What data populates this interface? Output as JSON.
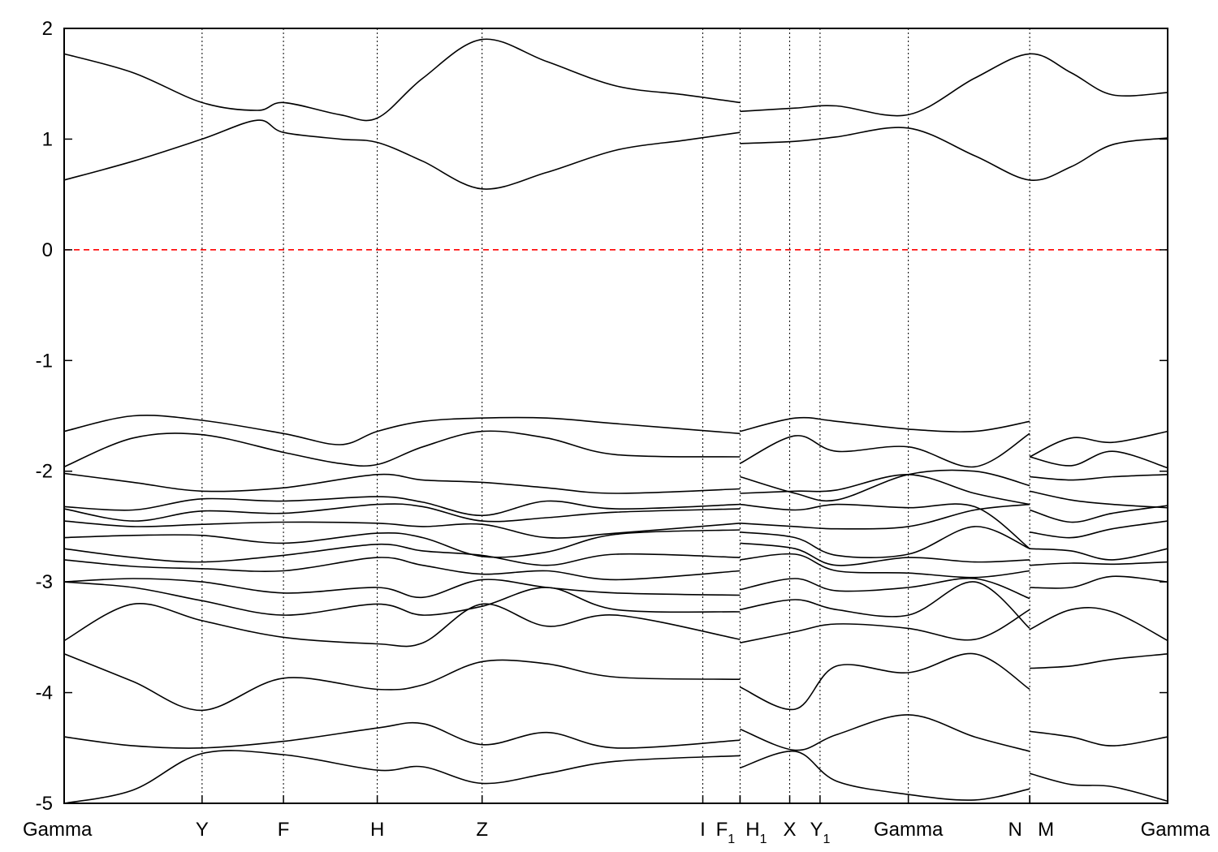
{
  "chart_data": {
    "type": "line",
    "title": "",
    "xlabel": "",
    "ylabel": "",
    "ylim": [
      -5,
      2
    ],
    "x_range": [
      0,
      8
    ],
    "y_ticks": [
      "2",
      "1",
      "0",
      "-1",
      "-2",
      "-3",
      "-4",
      "-5"
    ],
    "y_tick_values": [
      2,
      1,
      0,
      -1,
      -2,
      -3,
      -4,
      -5
    ],
    "k_points": [
      {
        "label": "Gamma",
        "sub": "",
        "x": 0.0
      },
      {
        "label": "Y",
        "sub": "",
        "x": 1.0
      },
      {
        "label": "F",
        "sub": "",
        "x": 1.59
      },
      {
        "label": "H",
        "sub": "",
        "x": 2.27
      },
      {
        "label": "Z",
        "sub": "",
        "x": 3.03
      },
      {
        "label": "I",
        "sub": "",
        "x": 4.63
      },
      {
        "label": "F",
        "sub": "1",
        "x": 4.9
      },
      {
        "label": "H",
        "sub": "1",
        "x": 4.9
      },
      {
        "label": "Y",
        "sub": "1",
        "x": 5.48
      },
      {
        "label": "X",
        "sub": "",
        "x": 5.26
      },
      {
        "label": "Gamma",
        "sub": "",
        "x": 6.12
      },
      {
        "label": "N",
        "sub": "",
        "x": 7.0
      },
      {
        "label": "M",
        "sub": "",
        "x": 7.0
      },
      {
        "label": "Gamma",
        "sub": "",
        "x": 8.0
      }
    ],
    "fermi_level": 0,
    "line_color": "#000000",
    "fermi_color": "#ff0000",
    "grid": "vertical dotted lines at k-points",
    "series": [
      {
        "x": [
          0,
          0.5,
          1.0,
          1.4,
          1.59,
          2.0,
          2.27,
          2.6,
          3.03,
          3.5,
          4.0,
          4.5,
          4.9
        ],
        "values": [
          1.77,
          1.6,
          1.33,
          1.26,
          1.33,
          1.22,
          1.19,
          1.55,
          1.9,
          1.7,
          1.48,
          1.4,
          1.33
        ]
      },
      {
        "x": [
          0,
          0.5,
          1.0,
          1.4,
          1.59,
          2.0,
          2.27,
          2.6,
          3.03,
          3.5,
          4.0,
          4.5,
          4.9
        ],
        "values": [
          0.63,
          0.8,
          1.0,
          1.17,
          1.06,
          1.0,
          0.97,
          0.8,
          0.55,
          0.7,
          0.9,
          0.99,
          1.06
        ]
      },
      {
        "x": [
          4.9,
          5.3,
          5.6,
          6.12,
          6.6,
          7.0,
          7.3,
          7.6,
          8.0
        ],
        "values": [
          1.25,
          1.28,
          1.3,
          1.22,
          1.55,
          1.77,
          1.6,
          1.4,
          1.42
        ]
      },
      {
        "x": [
          4.9,
          5.3,
          5.6,
          6.12,
          6.6,
          7.0,
          7.3,
          7.6,
          8.0
        ],
        "values": [
          0.96,
          0.98,
          1.02,
          1.1,
          0.85,
          0.63,
          0.75,
          0.95,
          1.01
        ]
      },
      {
        "x": [
          0,
          0.5,
          1.0,
          1.59,
          2.0,
          2.27,
          2.6,
          3.03,
          3.5,
          4.0,
          4.9
        ],
        "values": [
          -1.64,
          -1.5,
          -1.54,
          -1.66,
          -1.76,
          -1.64,
          -1.55,
          -1.52,
          -1.52,
          -1.57,
          -1.66
        ]
      },
      {
        "x": [
          0,
          0.5,
          1.0,
          1.59,
          2.0,
          2.27,
          2.6,
          3.03,
          3.5,
          4.0,
          4.9
        ],
        "values": [
          -1.96,
          -1.7,
          -1.67,
          -1.83,
          -1.93,
          -1.94,
          -1.78,
          -1.64,
          -1.7,
          -1.85,
          -1.87
        ]
      },
      {
        "x": [
          4.9,
          5.3,
          5.6,
          6.12,
          6.6,
          7.0
        ],
        "values": [
          -1.64,
          -1.52,
          -1.55,
          -1.62,
          -1.64,
          -1.55
        ]
      },
      {
        "x": [
          4.9,
          5.3,
          5.6,
          6.12,
          6.6,
          7.0
        ],
        "values": [
          -1.93,
          -1.68,
          -1.82,
          -1.78,
          -1.96,
          -1.66
        ]
      },
      {
        "x": [
          7.0,
          7.3,
          7.6,
          8.0
        ],
        "values": [
          -1.87,
          -1.7,
          -1.74,
          -1.64
        ]
      },
      {
        "x": [
          7.0,
          7.3,
          7.6,
          8.0
        ],
        "values": [
          -1.87,
          -1.95,
          -1.82,
          -1.97
        ]
      },
      {
        "x": [
          0,
          0.5,
          1.0,
          1.59,
          2.27,
          2.6,
          3.03,
          3.5,
          4.0,
          4.9
        ],
        "values": [
          -2.02,
          -2.1,
          -2.18,
          -2.15,
          -2.03,
          -2.08,
          -2.1,
          -2.15,
          -2.2,
          -2.16
        ]
      },
      {
        "x": [
          0,
          0.5,
          1.0,
          1.59,
          2.27,
          2.6,
          3.03,
          3.5,
          4.0,
          4.9
        ],
        "values": [
          -2.32,
          -2.35,
          -2.25,
          -2.27,
          -2.23,
          -2.28,
          -2.4,
          -2.27,
          -2.34,
          -2.3
        ]
      },
      {
        "x": [
          0,
          0.5,
          1.0,
          1.59,
          2.27,
          2.6,
          3.03,
          3.5,
          4.0,
          4.9
        ],
        "values": [
          -2.34,
          -2.45,
          -2.36,
          -2.38,
          -2.3,
          -2.32,
          -2.45,
          -2.42,
          -2.37,
          -2.34
        ]
      },
      {
        "x": [
          0,
          0.5,
          1.0,
          1.59,
          2.27,
          2.6,
          3.03,
          3.5,
          4.0,
          4.9
        ],
        "values": [
          -2.45,
          -2.5,
          -2.48,
          -2.46,
          -2.47,
          -2.5,
          -2.48,
          -2.6,
          -2.56,
          -2.47
        ]
      },
      {
        "x": [
          0,
          0.5,
          1.0,
          1.59,
          2.27,
          2.6,
          3.03,
          3.5,
          4.0,
          4.9
        ],
        "values": [
          -2.6,
          -2.58,
          -2.58,
          -2.65,
          -2.56,
          -2.6,
          -2.77,
          -2.73,
          -2.57,
          -2.53
        ]
      },
      {
        "x": [
          0,
          0.5,
          1.0,
          1.59,
          2.27,
          2.6,
          3.03,
          3.5,
          4.0,
          4.9
        ],
        "values": [
          -2.7,
          -2.78,
          -2.82,
          -2.76,
          -2.66,
          -2.72,
          -2.76,
          -2.85,
          -2.75,
          -2.78
        ]
      },
      {
        "x": [
          0,
          0.5,
          1.0,
          1.59,
          2.27,
          2.6,
          3.03,
          3.5,
          4.0,
          4.9
        ],
        "values": [
          -2.8,
          -2.86,
          -2.88,
          -2.9,
          -2.78,
          -2.85,
          -2.93,
          -2.9,
          -2.98,
          -2.9
        ]
      },
      {
        "x": [
          0,
          0.5,
          1.0,
          1.59,
          2.27,
          2.6,
          3.03,
          3.5,
          4.0,
          4.9
        ],
        "values": [
          -3.0,
          -2.97,
          -3.0,
          -3.1,
          -3.05,
          -3.14,
          -2.98,
          -3.05,
          -3.1,
          -3.12
        ]
      },
      {
        "x": [
          0,
          0.5,
          1.0,
          1.59,
          2.27,
          2.6,
          3.03,
          3.5,
          4.0,
          4.9
        ],
        "values": [
          -3.0,
          -3.05,
          -3.17,
          -3.3,
          -3.2,
          -3.3,
          -3.22,
          -3.05,
          -3.25,
          -3.27
        ]
      },
      {
        "x": [
          0,
          0.5,
          1.0,
          1.59,
          2.27,
          2.6,
          3.03,
          3.5,
          4.0,
          4.9
        ],
        "values": [
          -3.53,
          -3.2,
          -3.35,
          -3.5,
          -3.56,
          -3.55,
          -3.2,
          -3.4,
          -3.3,
          -3.52
        ]
      },
      {
        "x": [
          0,
          0.5,
          1.0,
          1.59,
          2.27,
          2.6,
          3.03,
          3.5,
          4.0,
          4.9
        ],
        "values": [
          -3.65,
          -3.9,
          -4.16,
          -3.87,
          -3.97,
          -3.93,
          -3.72,
          -3.74,
          -3.86,
          -3.88
        ]
      },
      {
        "x": [
          0,
          0.5,
          1.0,
          1.59,
          2.27,
          2.6,
          3.03,
          3.5,
          4.0,
          4.9
        ],
        "values": [
          -4.4,
          -4.48,
          -4.5,
          -4.44,
          -4.32,
          -4.28,
          -4.47,
          -4.36,
          -4.5,
          -4.43
        ]
      },
      {
        "x": [
          0,
          0.5,
          1.0,
          1.59,
          2.27,
          2.6,
          3.03,
          3.5,
          4.0,
          4.9
        ],
        "values": [
          -5.0,
          -4.88,
          -4.55,
          -4.56,
          -4.7,
          -4.67,
          -4.82,
          -4.73,
          -4.62,
          -4.57
        ]
      },
      {
        "x": [
          4.9,
          5.3,
          5.6,
          6.12,
          6.6,
          7.0
        ],
        "values": [
          -2.05,
          -2.2,
          -2.26,
          -2.03,
          -2.0,
          -2.13
        ]
      },
      {
        "x": [
          4.9,
          5.3,
          5.6,
          6.12,
          6.6,
          7.0
        ],
        "values": [
          -2.2,
          -2.18,
          -2.17,
          -2.03,
          -2.2,
          -2.3
        ]
      },
      {
        "x": [
          4.9,
          5.3,
          5.6,
          6.12,
          6.6,
          7.0
        ],
        "values": [
          -2.3,
          -2.35,
          -2.3,
          -2.33,
          -2.32,
          -2.7
        ]
      },
      {
        "x": [
          4.9,
          5.3,
          5.6,
          6.12,
          6.6,
          7.0
        ],
        "values": [
          -2.47,
          -2.5,
          -2.52,
          -2.5,
          -2.35,
          -2.3
        ]
      },
      {
        "x": [
          4.9,
          5.3,
          5.6,
          6.12,
          6.6,
          7.0
        ],
        "values": [
          -2.55,
          -2.6,
          -2.76,
          -2.75,
          -2.5,
          -2.7
        ]
      },
      {
        "x": [
          4.9,
          5.3,
          5.6,
          6.12,
          6.6,
          7.0
        ],
        "values": [
          -2.65,
          -2.7,
          -2.85,
          -2.78,
          -2.82,
          -2.8
        ]
      },
      {
        "x": [
          4.9,
          5.3,
          5.6,
          6.12,
          6.6,
          7.0
        ],
        "values": [
          -2.8,
          -2.75,
          -2.9,
          -2.92,
          -2.96,
          -2.9
        ]
      },
      {
        "x": [
          4.9,
          5.3,
          5.6,
          6.12,
          6.6,
          7.0
        ],
        "values": [
          -3.07,
          -2.97,
          -3.08,
          -3.05,
          -2.97,
          -3.15
        ]
      },
      {
        "x": [
          4.9,
          5.3,
          5.6,
          6.12,
          6.6,
          7.0
        ],
        "values": [
          -3.25,
          -3.16,
          -3.25,
          -3.3,
          -3.0,
          -3.42
        ]
      },
      {
        "x": [
          4.9,
          5.3,
          5.6,
          6.12,
          6.6,
          7.0
        ],
        "values": [
          -3.55,
          -3.45,
          -3.38,
          -3.42,
          -3.52,
          -3.25
        ]
      },
      {
        "x": [
          4.9,
          5.3,
          5.6,
          6.12,
          6.6,
          7.0
        ],
        "values": [
          -3.95,
          -4.15,
          -3.76,
          -3.82,
          -3.65,
          -3.97
        ]
      },
      {
        "x": [
          4.9,
          5.3,
          5.6,
          6.12,
          6.6,
          7.0
        ],
        "values": [
          -4.33,
          -4.52,
          -4.38,
          -4.2,
          -4.4,
          -4.53
        ]
      },
      {
        "x": [
          4.9,
          5.3,
          5.6,
          6.12,
          6.6,
          7.0
        ],
        "values": [
          -4.68,
          -4.53,
          -4.8,
          -4.92,
          -4.97,
          -4.87
        ]
      },
      {
        "x": [
          7.0,
          7.3,
          7.6,
          8.0
        ],
        "values": [
          -2.05,
          -2.08,
          -2.05,
          -2.03
        ]
      },
      {
        "x": [
          7.0,
          7.3,
          7.6,
          8.0
        ],
        "values": [
          -2.18,
          -2.26,
          -2.3,
          -2.33
        ]
      },
      {
        "x": [
          7.0,
          7.3,
          7.6,
          8.0
        ],
        "values": [
          -2.35,
          -2.46,
          -2.38,
          -2.31
        ]
      },
      {
        "x": [
          7.0,
          7.3,
          7.6,
          8.0
        ],
        "values": [
          -2.55,
          -2.6,
          -2.52,
          -2.45
        ]
      },
      {
        "x": [
          7.0,
          7.3,
          7.6,
          8.0
        ],
        "values": [
          -2.7,
          -2.72,
          -2.8,
          -2.7
        ]
      },
      {
        "x": [
          7.0,
          7.3,
          7.6,
          8.0
        ],
        "values": [
          -2.85,
          -2.83,
          -2.84,
          -2.82
        ]
      },
      {
        "x": [
          7.0,
          7.3,
          7.6,
          8.0
        ],
        "values": [
          -3.05,
          -3.05,
          -2.95,
          -3.0
        ]
      },
      {
        "x": [
          7.0,
          7.3,
          7.6,
          8.0
        ],
        "values": [
          -3.43,
          -3.25,
          -3.27,
          -3.53
        ]
      },
      {
        "x": [
          7.0,
          7.3,
          7.6,
          8.0
        ],
        "values": [
          -3.78,
          -3.76,
          -3.7,
          -3.65
        ]
      },
      {
        "x": [
          7.0,
          7.3,
          7.6,
          8.0
        ],
        "values": [
          -4.35,
          -4.4,
          -4.48,
          -4.4
        ]
      },
      {
        "x": [
          7.0,
          7.3,
          7.6,
          8.0
        ],
        "values": [
          -4.73,
          -4.83,
          -4.85,
          -4.98
        ]
      }
    ]
  }
}
